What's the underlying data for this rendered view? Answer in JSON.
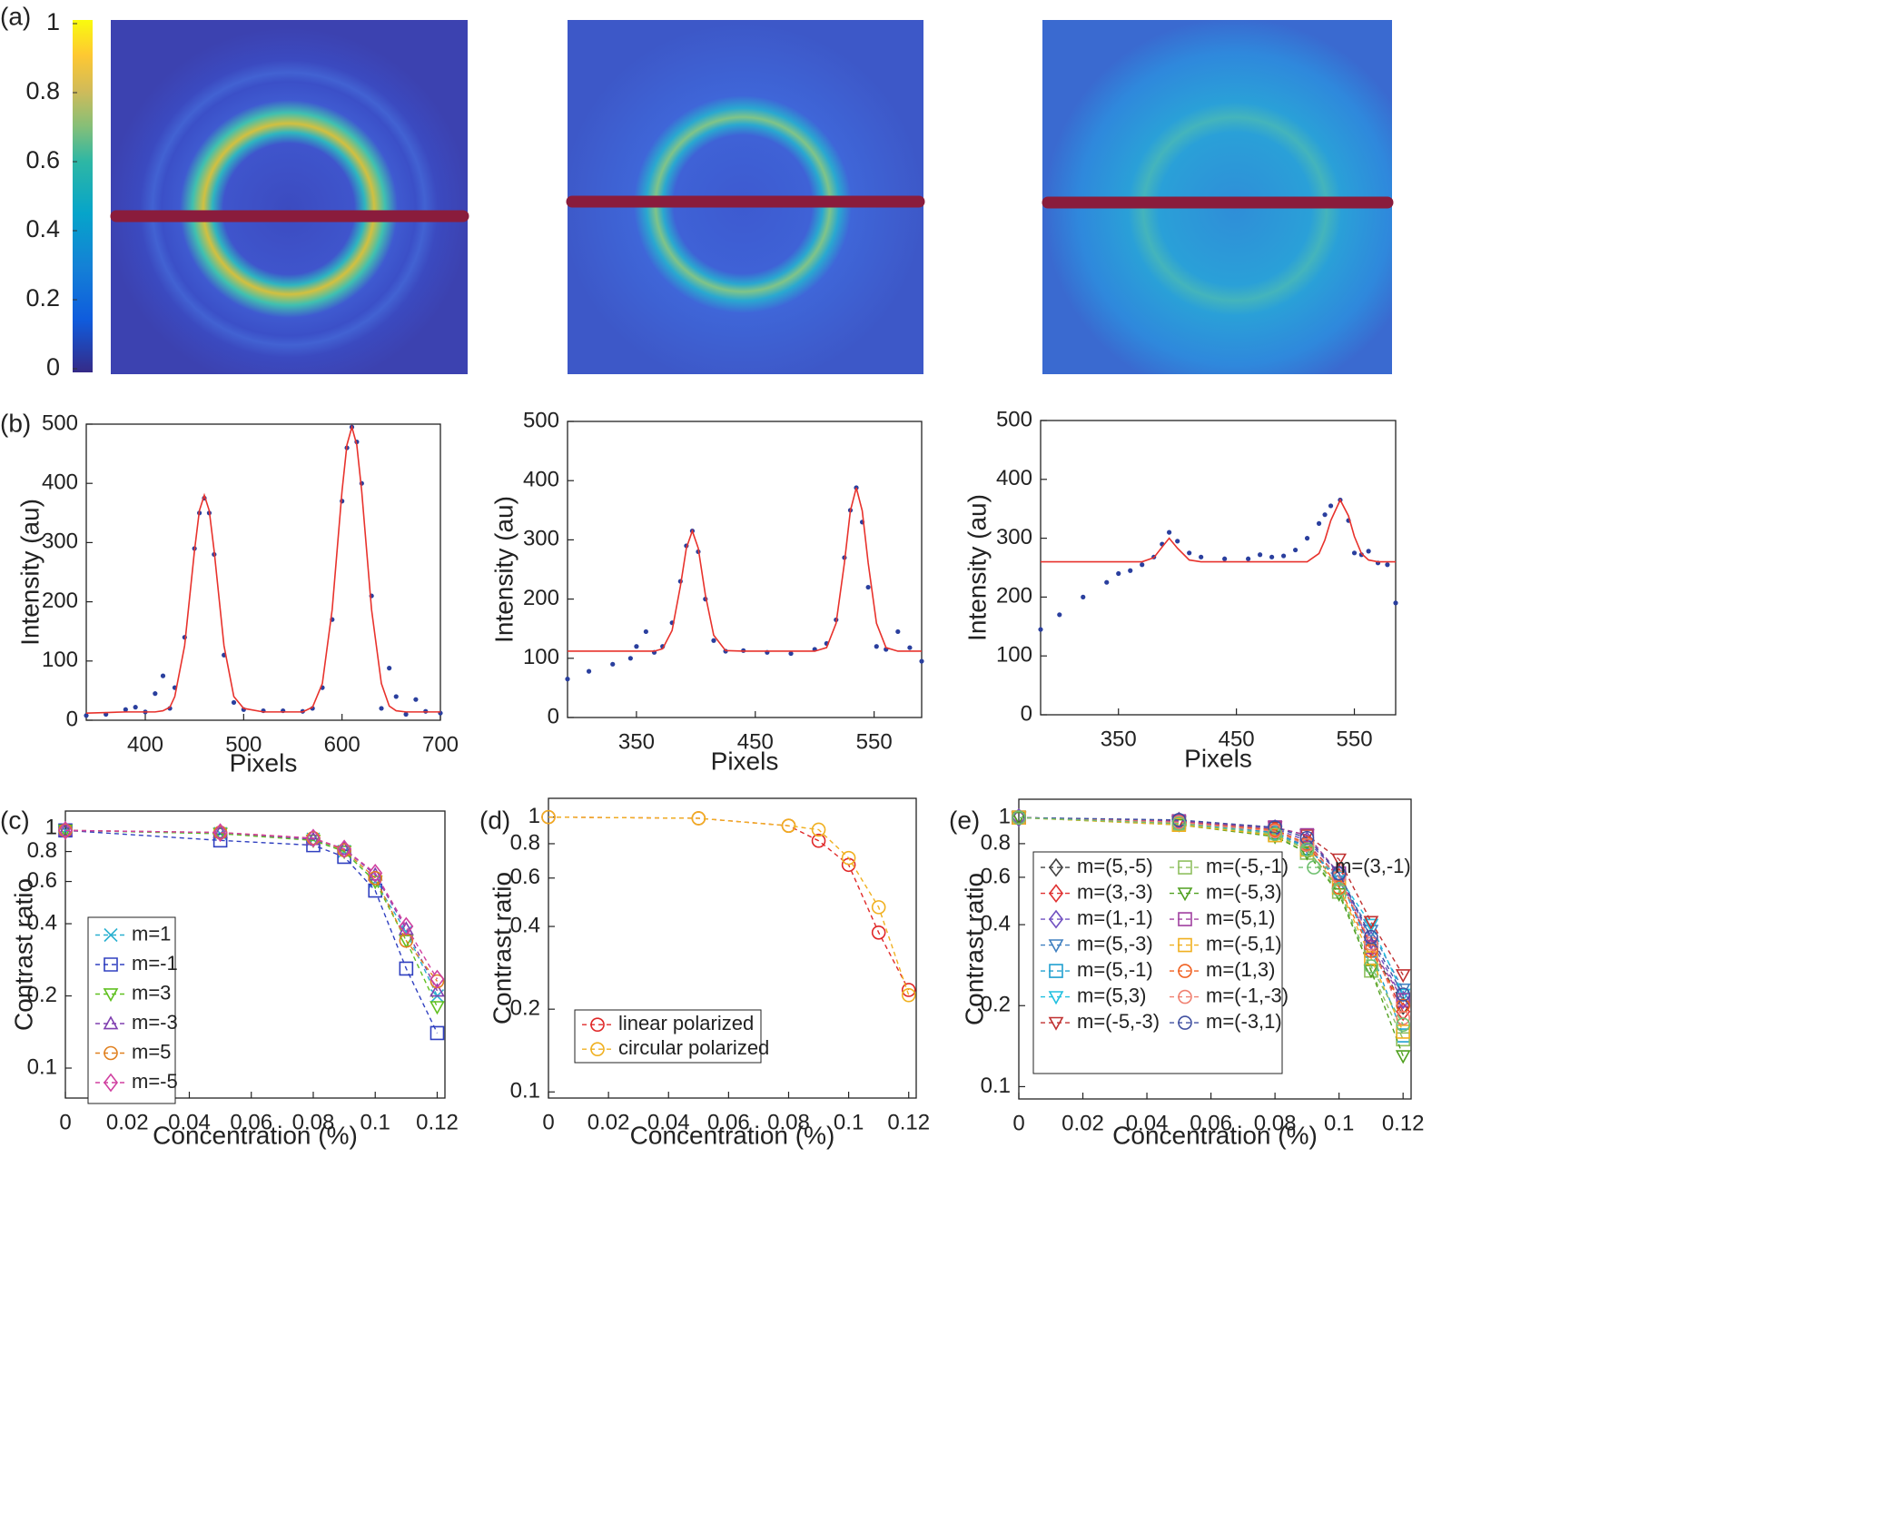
{
  "chart_data": [
    {
      "type": "image",
      "label": "(a)",
      "ylim": [
        0,
        1
      ],
      "yticks": [
        0,
        0.2,
        0.4,
        0.6,
        0.8,
        1
      ]
    },
    {
      "type": "line",
      "label": "(b)",
      "xlabel": "Pixels",
      "ylabel": "Intensity (au)",
      "x": [
        340,
        360,
        380,
        390,
        400,
        410,
        418,
        425,
        430,
        440,
        450,
        455,
        460,
        465,
        470,
        480,
        490,
        500,
        520,
        540,
        560,
        570,
        580,
        590,
        600,
        605,
        610,
        615,
        620,
        630,
        640,
        648,
        655,
        665,
        675,
        685,
        700
      ],
      "xlim": [
        340,
        700
      ],
      "xticks": [
        400,
        500,
        600,
        700
      ],
      "ylim": [
        0,
        500
      ],
      "yticks": [
        0,
        100,
        200,
        300,
        400,
        500
      ],
      "series": [
        {
          "color": "#2a3f9e",
          "marker": "dot",
          "values": [
            8,
            10,
            18,
            22,
            14,
            45,
            75,
            20,
            55,
            140,
            290,
            350,
            375,
            350,
            280,
            110,
            30,
            18,
            16,
            16,
            15,
            20,
            55,
            170,
            370,
            460,
            495,
            470,
            400,
            210,
            20,
            88,
            40,
            10,
            35,
            15,
            12
          ]
        },
        {
          "color": "#e8322c",
          "line": "solid",
          "values": [
            12,
            13,
            14,
            14,
            14,
            14,
            16,
            22,
            40,
            126,
            286,
            354,
            380,
            354,
            286,
            126,
            40,
            20,
            14,
            14,
            14,
            22,
            62,
            187,
            387,
            465,
            495,
            465,
            387,
            187,
            62,
            24,
            16,
            14,
            14,
            14,
            14
          ]
        }
      ]
    },
    {
      "type": "line",
      "xlabel": "Pixels",
      "ylabel": "Intensity (au)",
      "x": [
        292,
        310,
        330,
        345,
        350,
        358,
        365,
        372,
        380,
        387,
        392,
        397,
        402,
        408,
        415,
        425,
        440,
        460,
        480,
        500,
        510,
        518,
        525,
        530,
        535,
        540,
        545,
        552,
        560,
        570,
        580,
        590
      ],
      "xlim": [
        292,
        590
      ],
      "xticks": [
        350,
        450,
        550
      ],
      "ylim": [
        0,
        500
      ],
      "yticks": [
        0,
        100,
        200,
        300,
        400,
        500
      ],
      "series": [
        {
          "color": "#2a3f9e",
          "marker": "dot",
          "values": [
            65,
            78,
            90,
            100,
            120,
            145,
            110,
            120,
            160,
            230,
            290,
            315,
            280,
            200,
            130,
            112,
            113,
            110,
            108,
            115,
            125,
            165,
            270,
            350,
            388,
            330,
            220,
            120,
            115,
            145,
            118,
            95
          ]
        },
        {
          "color": "#e8322c",
          "line": "solid",
          "values": [
            112,
            112,
            112,
            112,
            112,
            112,
            112,
            116,
            147,
            222,
            286,
            315,
            286,
            207,
            139,
            113,
            112,
            112,
            112,
            112,
            118,
            159,
            261,
            349,
            388,
            349,
            261,
            159,
            118,
            112,
            112,
            112
          ]
        }
      ]
    },
    {
      "type": "line",
      "xlabel": "Pixels",
      "ylabel": "Intensity (au)",
      "x": [
        284,
        300,
        320,
        340,
        350,
        360,
        370,
        380,
        387,
        393,
        400,
        410,
        420,
        440,
        460,
        470,
        480,
        490,
        500,
        510,
        520,
        525,
        530,
        538,
        545,
        550,
        556,
        562,
        570,
        578,
        585
      ],
      "xlim": [
        284,
        585
      ],
      "xticks": [
        350,
        450,
        550
      ],
      "ylim": [
        0,
        500
      ],
      "yticks": [
        0,
        100,
        200,
        300,
        400,
        500
      ],
      "series": [
        {
          "color": "#2a3f9e",
          "marker": "dot",
          "values": [
            145,
            170,
            200,
            225,
            240,
            245,
            255,
            268,
            290,
            310,
            295,
            275,
            268,
            265,
            265,
            272,
            268,
            270,
            280,
            300,
            325,
            340,
            355,
            365,
            330,
            275,
            272,
            278,
            258,
            255,
            190
          ]
        },
        {
          "color": "#e8322c",
          "line": "solid",
          "values": [
            260,
            260,
            260,
            260,
            260,
            260,
            260,
            267,
            285,
            300,
            283,
            263,
            260,
            260,
            260,
            260,
            260,
            260,
            260,
            260,
            274,
            297,
            330,
            365,
            338,
            303,
            274,
            263,
            260,
            260,
            260
          ]
        }
      ]
    },
    {
      "type": "line",
      "label": "(c)",
      "xlabel": "Concentration (%)",
      "ylabel": "Contrast ratio",
      "log_y": true,
      "legend": "lower left",
      "x": [
        0,
        0.05,
        0.08,
        0.09,
        0.1,
        0.11,
        0.12
      ],
      "xlim": [
        0,
        0.1225
      ],
      "xticks": [
        0,
        0.02,
        0.04,
        0.06,
        0.08,
        0.1,
        0.12
      ],
      "ylim": [
        0.075,
        1.18
      ],
      "yticks": [
        0.1,
        0.2,
        0.4,
        0.6,
        0.8,
        1
      ],
      "series": [
        {
          "name": "m=1",
          "color": "#2ab0d0",
          "marker": "x",
          "line": "dashed",
          "values": [
            0.98,
            0.95,
            0.9,
            0.8,
            0.6,
            0.37,
            0.2
          ]
        },
        {
          "name": "m=-1",
          "color": "#3040c0",
          "marker": "square",
          "line": "dashed",
          "values": [
            0.98,
            0.89,
            0.85,
            0.76,
            0.55,
            0.26,
            0.14
          ]
        },
        {
          "name": "m=3",
          "color": "#60c020",
          "marker": "triangle-down",
          "line": "dashed",
          "values": [
            0.98,
            0.95,
            0.89,
            0.8,
            0.6,
            0.34,
            0.18
          ]
        },
        {
          "name": "m=-3",
          "color": "#8040b0",
          "marker": "triangle",
          "line": "dashed",
          "values": [
            0.98,
            0.96,
            0.9,
            0.82,
            0.64,
            0.38,
            0.21
          ]
        },
        {
          "name": "m=5",
          "color": "#e08020",
          "marker": "circle",
          "line": "dashed",
          "values": [
            0.98,
            0.96,
            0.91,
            0.81,
            0.62,
            0.34,
            0.23
          ]
        },
        {
          "name": "m=-5",
          "color": "#d040a0",
          "marker": "diamond",
          "line": "dashed",
          "values": [
            0.98,
            0.96,
            0.91,
            0.82,
            0.65,
            0.39,
            0.235
          ]
        }
      ]
    },
    {
      "type": "line",
      "label": "(d)",
      "xlabel": "Concentration (%)",
      "ylabel": "Contrast ratio",
      "log_y": true,
      "legend": "lower left",
      "x": [
        0,
        0.05,
        0.08,
        0.09,
        0.1,
        0.11,
        0.12
      ],
      "xlim": [
        0,
        0.1225
      ],
      "xticks": [
        0,
        0.02,
        0.04,
        0.06,
        0.08,
        0.1,
        0.12
      ],
      "ylim": [
        0.095,
        1.17
      ],
      "yticks": [
        0.1,
        0.2,
        0.4,
        0.6,
        0.8,
        1
      ],
      "series": [
        {
          "name": "linear polarized",
          "color": "#e02828",
          "marker": "circle",
          "line": "dashed",
          "values": [
            1,
            0.99,
            0.93,
            0.82,
            0.67,
            0.38,
            0.235
          ]
        },
        {
          "name": "circular polarized",
          "color": "#f0b020",
          "marker": "circle",
          "line": "dashed",
          "values": [
            1,
            0.99,
            0.93,
            0.9,
            0.71,
            0.47,
            0.225
          ]
        }
      ]
    },
    {
      "type": "line",
      "label": "(e)",
      "xlabel": "Concentration (%)",
      "ylabel": "Contrast ratio",
      "log_y": true,
      "legend": "lower left",
      "x": [
        0,
        0.05,
        0.08,
        0.09,
        0.1,
        0.11,
        0.12
      ],
      "xlim": [
        0,
        0.1225
      ],
      "xticks": [
        0,
        0.02,
        0.04,
        0.06,
        0.08,
        0.1,
        0.12
      ],
      "ylim": [
        0.09,
        1.17
      ],
      "yticks": [
        0.1,
        0.2,
        0.4,
        0.6,
        0.8,
        1
      ],
      "series": [
        {
          "name": "m=(5,-5)",
          "color": "#404040",
          "marker": "diamond",
          "line": "dashed",
          "values": [
            1,
            0.97,
            0.9,
            0.8,
            0.6,
            0.33,
            0.2
          ]
        },
        {
          "name": "m=(3,-3)",
          "color": "#e03030",
          "marker": "diamond",
          "line": "dashed",
          "values": [
            1,
            0.97,
            0.9,
            0.8,
            0.6,
            0.33,
            0.19
          ]
        },
        {
          "name": "m=(1,-1)",
          "color": "#7050c0",
          "marker": "diamond",
          "line": "dashed",
          "values": [
            1,
            0.97,
            0.91,
            0.82,
            0.62,
            0.35,
            0.21
          ]
        },
        {
          "name": "m=(5,-3)",
          "color": "#4080c0",
          "marker": "triangle-down",
          "line": "dashed",
          "values": [
            1,
            0.96,
            0.88,
            0.78,
            0.58,
            0.38,
            0.23
          ]
        },
        {
          "name": "m=(5,-1)",
          "color": "#20a0d0",
          "marker": "square",
          "line": "dashed",
          "values": [
            1,
            0.96,
            0.88,
            0.77,
            0.6,
            0.32,
            0.155
          ]
        },
        {
          "name": "m=(5,3)",
          "color": "#20c0e0",
          "marker": "triangle-down",
          "line": "dashed",
          "values": [
            1,
            0.96,
            0.89,
            0.79,
            0.6,
            0.4,
            0.22
          ]
        },
        {
          "name": "m=(-5,-3)",
          "color": "#c03030",
          "marker": "triangle-down",
          "line": "dashed",
          "values": [
            1,
            0.97,
            0.92,
            0.86,
            0.7,
            0.41,
            0.26
          ]
        },
        {
          "name": "m=(-5,-1)",
          "color": "#90c060",
          "marker": "square",
          "line": "dashed",
          "values": [
            1,
            0.95,
            0.86,
            0.74,
            0.53,
            0.27,
            0.15
          ]
        },
        {
          "name": "m=(-5,3)",
          "color": "#50a020",
          "marker": "triangle-down",
          "line": "dashed",
          "values": [
            1,
            0.94,
            0.85,
            0.74,
            0.52,
            0.27,
            0.13
          ]
        },
        {
          "name": "m=(5,1)",
          "color": "#a040a0",
          "marker": "square",
          "line": "dashed",
          "values": [
            1,
            0.97,
            0.92,
            0.86,
            0.62,
            0.33,
            0.21
          ]
        },
        {
          "name": "m=(-5,1)",
          "color": "#f0b020",
          "marker": "square",
          "line": "dashed",
          "values": [
            1,
            0.94,
            0.86,
            0.76,
            0.55,
            0.3,
            0.16
          ]
        },
        {
          "name": "m=(1,3)",
          "color": "#f06020",
          "marker": "circle",
          "line": "dashed",
          "values": [
            1,
            0.96,
            0.9,
            0.8,
            0.55,
            0.32,
            0.2
          ]
        },
        {
          "name": "m=(-1,-3)",
          "color": "#f08070",
          "marker": "circle",
          "line": "dashed",
          "values": [
            1,
            0.96,
            0.89,
            0.79,
            0.6,
            0.34,
            0.18
          ]
        },
        {
          "name": "m=(-3,1)",
          "color": "#4050a0",
          "marker": "circle",
          "line": "dashed",
          "values": [
            1,
            0.98,
            0.92,
            0.84,
            0.62,
            0.36,
            0.22
          ]
        },
        {
          "name": "m=(3,-1)",
          "color": "#70c070",
          "marker": "circle",
          "line": "dashed",
          "values": [
            1,
            0.95,
            0.87,
            0.76,
            0.54,
            0.28,
            0.17
          ]
        }
      ]
    }
  ]
}
